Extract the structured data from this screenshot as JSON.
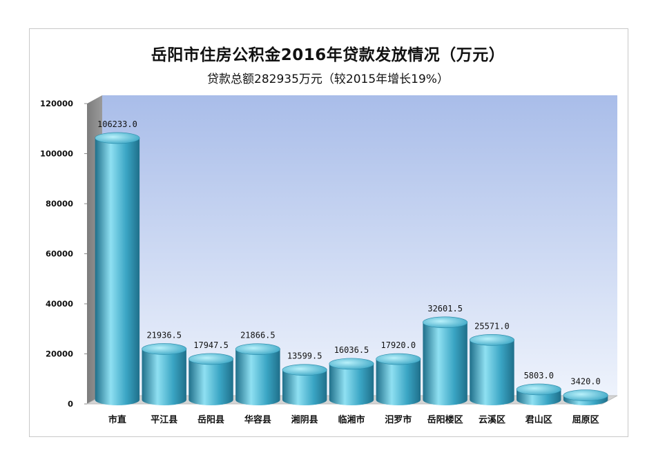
{
  "chart_data": {
    "type": "bar",
    "title": "岳阳市住房公积金2016年贷款发放情况（万元）",
    "subtitle": "贷款总额282935万元（较2015年增长19%）",
    "categories": [
      "市直",
      "平江县",
      "岳阳县",
      "华容县",
      "湘阴县",
      "临湘市",
      "汨罗市",
      "岳阳楼区",
      "云溪区",
      "君山区",
      "屈原区"
    ],
    "values": [
      106233.0,
      21936.5,
      17947.5,
      21866.5,
      13599.5,
      16036.5,
      17920.0,
      32601.5,
      25571.0,
      5803.0,
      3420.0
    ],
    "value_labels": [
      "106233.0",
      "21936.5",
      "17947.5",
      "21866.5",
      "13599.5",
      "16036.5",
      "17920.0",
      "32601.5",
      "25571.0",
      "5803.0",
      "3420.0"
    ],
    "ylim": [
      0,
      120000
    ],
    "yticks": [
      0,
      20000,
      40000,
      60000,
      80000,
      100000,
      120000
    ],
    "grid": false,
    "style": "3d-cylinder",
    "colors": {
      "bar": "#3aa5c4",
      "bar_dark": "#1f6f8a",
      "bar_light": "#8fe0f2",
      "backwall_top": "#a9bde9",
      "backwall_bottom": "#eef3fc",
      "sidewall": "#9a9a9a",
      "floor": "#d4d4d4"
    }
  }
}
